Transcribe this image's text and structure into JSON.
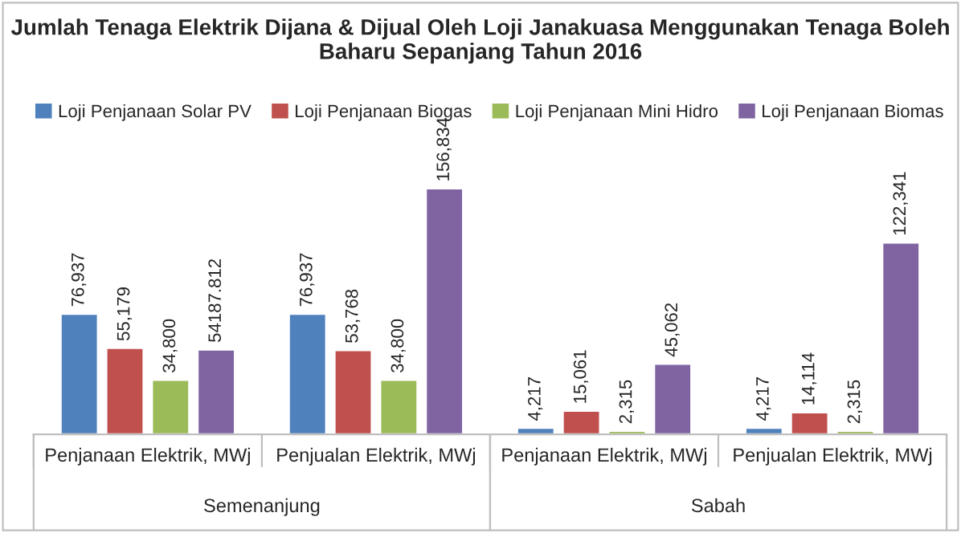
{
  "chart_data": {
    "type": "bar",
    "title": "Jumlah Tenaga Elektrik Dijana & Dijual Oleh Loji Janakuasa Menggunakan Tenaga Boleh Baharu Sepanjang Tahun 2016",
    "categories": [
      "Penjanaan Elektrik, MWj",
      "Penjualan Elektrik, MWj",
      "Penjanaan Elektrik, MWj",
      "Penjualan Elektrik, MWj"
    ],
    "series": [
      {
        "name": "Loji Penjanaan Solar PV",
        "color": "#4f81bd",
        "values": [
          76937,
          76937,
          4217,
          4217
        ],
        "value_labels": [
          "76,937",
          "76,937",
          "4,217",
          "4,217"
        ]
      },
      {
        "name": "Loji Penjanaan Biogas",
        "color": "#c0504d",
        "values": [
          55179,
          53768,
          15061,
          14114
        ],
        "value_labels": [
          "55,179",
          "53,768",
          "15,061",
          "14,114"
        ]
      },
      {
        "name": "Loji Penjanaan Mini Hidro",
        "color": "#9bbb59",
        "values": [
          34800,
          34800,
          2315,
          2315
        ],
        "value_labels": [
          "34,800",
          "34,800",
          "2,315",
          "2,315"
        ]
      },
      {
        "name": "Loji Penjanaan Biomas",
        "color": "#8064a2",
        "values": [
          54187.812,
          156834,
          45062,
          122341
        ],
        "value_labels": [
          "54187.812",
          "156,834",
          "45,062",
          "122,341"
        ]
      }
    ],
    "annotations": [
      "Semenanjung",
      "Sabah"
    ],
    "legend": "top",
    "grid": false
  }
}
